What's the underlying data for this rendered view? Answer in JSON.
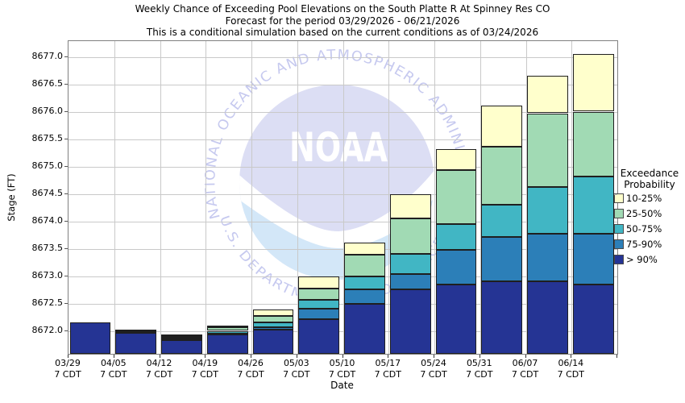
{
  "header": {
    "title_line1": "Weekly Chance of Exceeding Pool Elevations on the South Platte R At Spinney Res CO",
    "title_line2": "Forecast for the period 03/29/2026 - 06/21/2026",
    "title_line3": "This is a conditional simulation based on the current conditions as of 03/24/2026"
  },
  "watermark": {
    "arc_top_text": "NATIONAL OCEANIC AND ATMOSPHERIC ADMINISTRATION",
    "arc_bottom_text": "U.S. DEPARTMENT OF COMMERCE",
    "center_text": "NOAA",
    "circle_color": "#dcdef4",
    "wave_color": "#d3e7f8",
    "arc_text_color": "#c6c9ef"
  },
  "chart_data": {
    "type": "bar",
    "stacked": true,
    "title": "Weekly Chance of Exceeding Pool Elevations on the South Platte R At Spinney Res CO",
    "xlabel": "Date",
    "ylabel": "Stage (FT)",
    "ylim": [
      8671.58,
      8677.3
    ],
    "yticks": [
      8672.0,
      8672.5,
      8673.0,
      8673.5,
      8674.0,
      8674.5,
      8675.0,
      8675.5,
      8676.0,
      8676.5,
      8677.0
    ],
    "grid": true,
    "legend": {
      "title_line1": "Exceedance",
      "title_line2": "Probability",
      "position": "right"
    },
    "series_top_down": [
      {
        "name": "10-25%",
        "color": "#FFFFCC",
        "level_key": "p10"
      },
      {
        "name": "25-50%",
        "color": "#A1DAB4",
        "level_key": "p25"
      },
      {
        "name": "50-75%",
        "color": "#41B6C4",
        "level_key": "p50"
      },
      {
        "name": "75-90%",
        "color": "#2C7FB8",
        "level_key": "p75"
      },
      {
        "name": "> 90%",
        "color": "#253494",
        "level_key": "p90"
      }
    ],
    "bars": [
      {
        "date": "03/29",
        "time": "7 CDT",
        "levels": {
          "p10": 8672.15,
          "p25": 8672.15,
          "p50": 8672.15,
          "p75": 8672.15,
          "p90": 8672.15
        }
      },
      {
        "date": "04/05",
        "time": "7 CDT",
        "levels": {
          "p10": 8672.02,
          "p25": 8672.01,
          "p50": 8672.0,
          "p75": 8671.98,
          "p90": 8671.97
        }
      },
      {
        "date": "04/12",
        "time": "7 CDT",
        "levels": {
          "p10": 8671.94,
          "p25": 8671.91,
          "p50": 8671.88,
          "p75": 8671.85,
          "p90": 8671.83
        }
      },
      {
        "date": "04/19",
        "time": "7 CDT",
        "levels": {
          "p10": 8672.09,
          "p25": 8672.07,
          "p50": 8672.0,
          "p75": 8671.95,
          "p90": 8671.93
        }
      },
      {
        "date": "04/26",
        "time": "7 CDT",
        "levels": {
          "p10": 8672.39,
          "p25": 8672.27,
          "p50": 8672.16,
          "p75": 8672.07,
          "p90": 8672.02
        }
      },
      {
        "date": "05/03",
        "time": "7 CDT",
        "levels": {
          "p10": 8672.99,
          "p25": 8672.78,
          "p50": 8672.57,
          "p75": 8672.41,
          "p90": 8672.21
        }
      },
      {
        "date": "05/10",
        "time": "7 CDT",
        "levels": {
          "p10": 8673.62,
          "p25": 8673.39,
          "p50": 8672.99,
          "p75": 8672.76,
          "p90": 8672.5
        }
      },
      {
        "date": "05/17",
        "time": "7 CDT",
        "levels": {
          "p10": 8674.5,
          "p25": 8674.06,
          "p50": 8673.41,
          "p75": 8673.04,
          "p90": 8672.76
        }
      },
      {
        "date": "05/24",
        "time": "7 CDT",
        "levels": {
          "p10": 8675.32,
          "p25": 8674.94,
          "p50": 8673.96,
          "p75": 8673.48,
          "p90": 8672.85
        }
      },
      {
        "date": "05/31",
        "time": "7 CDT",
        "levels": {
          "p10": 8676.12,
          "p25": 8675.37,
          "p50": 8674.31,
          "p75": 8673.72,
          "p90": 8672.91
        }
      },
      {
        "date": "06/07",
        "time": "7 CDT",
        "levels": {
          "p10": 8676.67,
          "p25": 8675.98,
          "p50": 8674.63,
          "p75": 8673.77,
          "p90": 8672.91
        }
      },
      {
        "date": "06/14",
        "time": "7 CDT",
        "levels": {
          "p10": 8677.06,
          "p25": 8676.01,
          "p50": 8674.83,
          "p75": 8673.77,
          "p90": 8672.85
        }
      }
    ]
  }
}
